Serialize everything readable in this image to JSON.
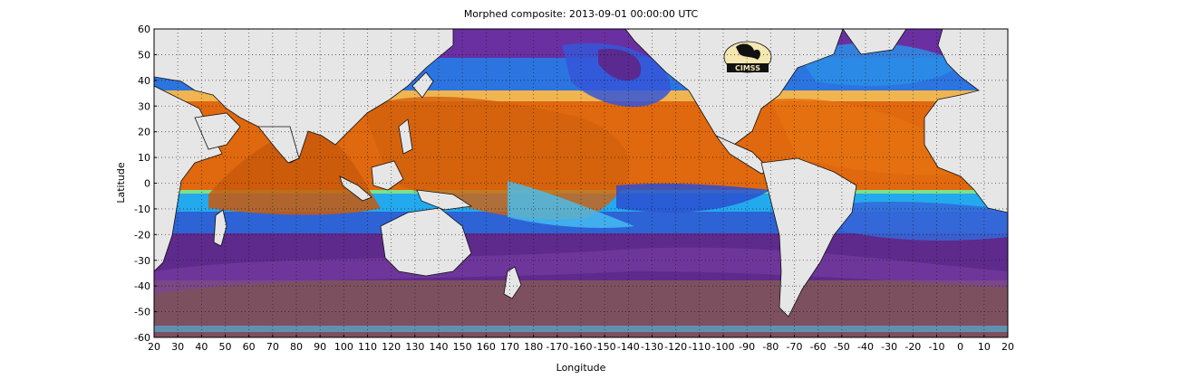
{
  "map": {
    "title": "Morphed composite: 2013-09-01 00:00:00 UTC",
    "xlabel": "Longitude",
    "ylabel": "Latitude",
    "x_ticks": [
      "20",
      "30",
      "40",
      "50",
      "60",
      "70",
      "80",
      "90",
      "100",
      "110",
      "120",
      "130",
      "140",
      "150",
      "160",
      "170",
      "180",
      "-170",
      "-160",
      "-150",
      "-140",
      "-130",
      "-120",
      "-110",
      "-100",
      "-90",
      "-80",
      "-70",
      "-60",
      "-50",
      "-40",
      "-30",
      "-20",
      "-10",
      "0",
      "10",
      "20"
    ],
    "y_ticks": [
      "60",
      "50",
      "40",
      "30",
      "20",
      "10",
      "0",
      "-10",
      "-20",
      "-30",
      "-40",
      "-50",
      "-60"
    ],
    "logo_text": "CIMSS",
    "grid": "dotted",
    "colors": {
      "land": "#e6e6e6",
      "high": "#e26a0f",
      "mid": "#21a7f0",
      "green": "#7ee089",
      "low": "#6a1f9c",
      "dry": "#8c5c6a"
    }
  }
}
